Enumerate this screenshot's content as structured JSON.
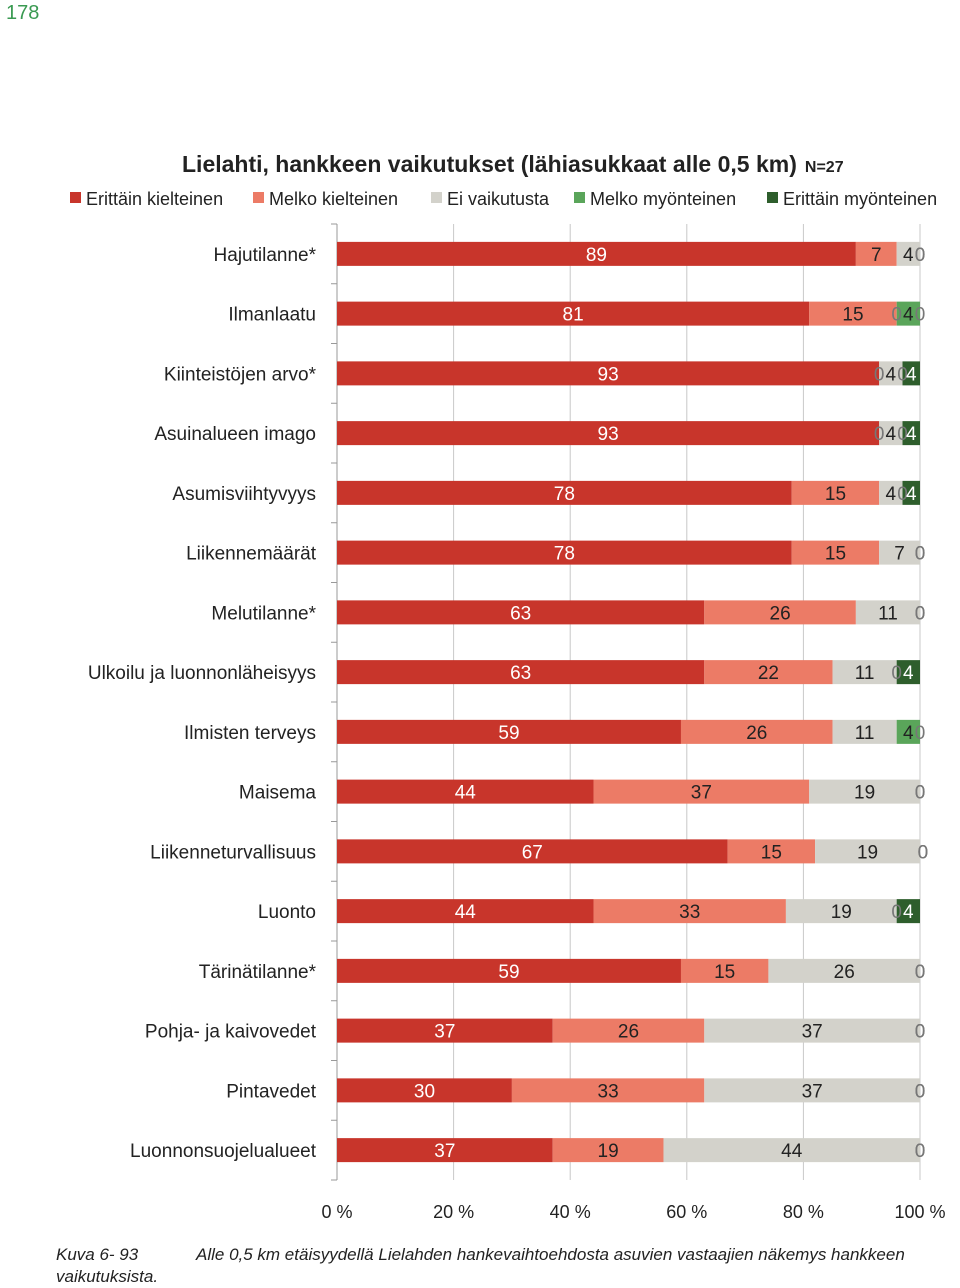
{
  "page_number": "178",
  "caption": {
    "figure_label": "Kuva 6- 93",
    "text": "Alle 0,5 km etäisyydellä Lielahden hankevaihtoehdosta asuvien vastaajien näkemys hankkeen",
    "continuation": "vaikutuksista."
  },
  "chart_data": {
    "type": "bar",
    "orientation": "horizontal",
    "stacked": true,
    "title": "Lielahti, hankkeen vaikutukset (lähiasukkaat alle 0,5 km)",
    "title_note": "N=27",
    "xlabel": "",
    "ylabel": "",
    "xlim": [
      0,
      100
    ],
    "x_ticks": [
      "0 %",
      "20 %",
      "40 %",
      "60 %",
      "80 %",
      "100 %"
    ],
    "grid": true,
    "legend_position": "top",
    "colors": [
      "#c8352b",
      "#ec7b66",
      "#d3d2cb",
      "#5aa55a",
      "#2e5e2c"
    ],
    "categories": [
      "Hajutilanne*",
      "Ilmanlaatu",
      "Kiinteistöjen arvo*",
      "Asuinalueen imago",
      "Asumisviihtyvyys",
      "Liikennemäärät",
      "Melutilanne*",
      "Ulkoilu ja luonnonläheisyys",
      "Ilmisten terveys",
      "Maisema",
      "Liikenneturvallisuus",
      "Luonto",
      "Tärinätilanne*",
      "Pohja- ja kaivovedet",
      "Pintavedet",
      "Luonnonsuojelualueet"
    ],
    "series": [
      {
        "name": "Erittäin kielteinen",
        "values": [
          89,
          81,
          93,
          93,
          78,
          78,
          63,
          63,
          59,
          44,
          67,
          44,
          59,
          37,
          30,
          37
        ]
      },
      {
        "name": "Melko kielteinen",
        "values": [
          7,
          15,
          0,
          0,
          15,
          15,
          26,
          22,
          26,
          37,
          15,
          33,
          15,
          26,
          33,
          19
        ]
      },
      {
        "name": "Ei vaikutusta",
        "values": [
          4,
          0,
          4,
          4,
          4,
          7,
          11,
          11,
          11,
          19,
          19,
          19,
          26,
          37,
          37,
          44
        ]
      },
      {
        "name": "Melko myönteinen",
        "values": [
          0,
          4,
          0,
          0,
          0,
          0,
          0,
          0,
          4,
          0,
          0,
          0,
          0,
          0,
          0,
          0
        ]
      },
      {
        "name": "Erittäin myönteinen",
        "values": [
          0,
          0,
          4,
          4,
          4,
          0,
          0,
          4,
          0,
          0,
          0,
          4,
          0,
          0,
          0,
          0
        ]
      }
    ]
  }
}
